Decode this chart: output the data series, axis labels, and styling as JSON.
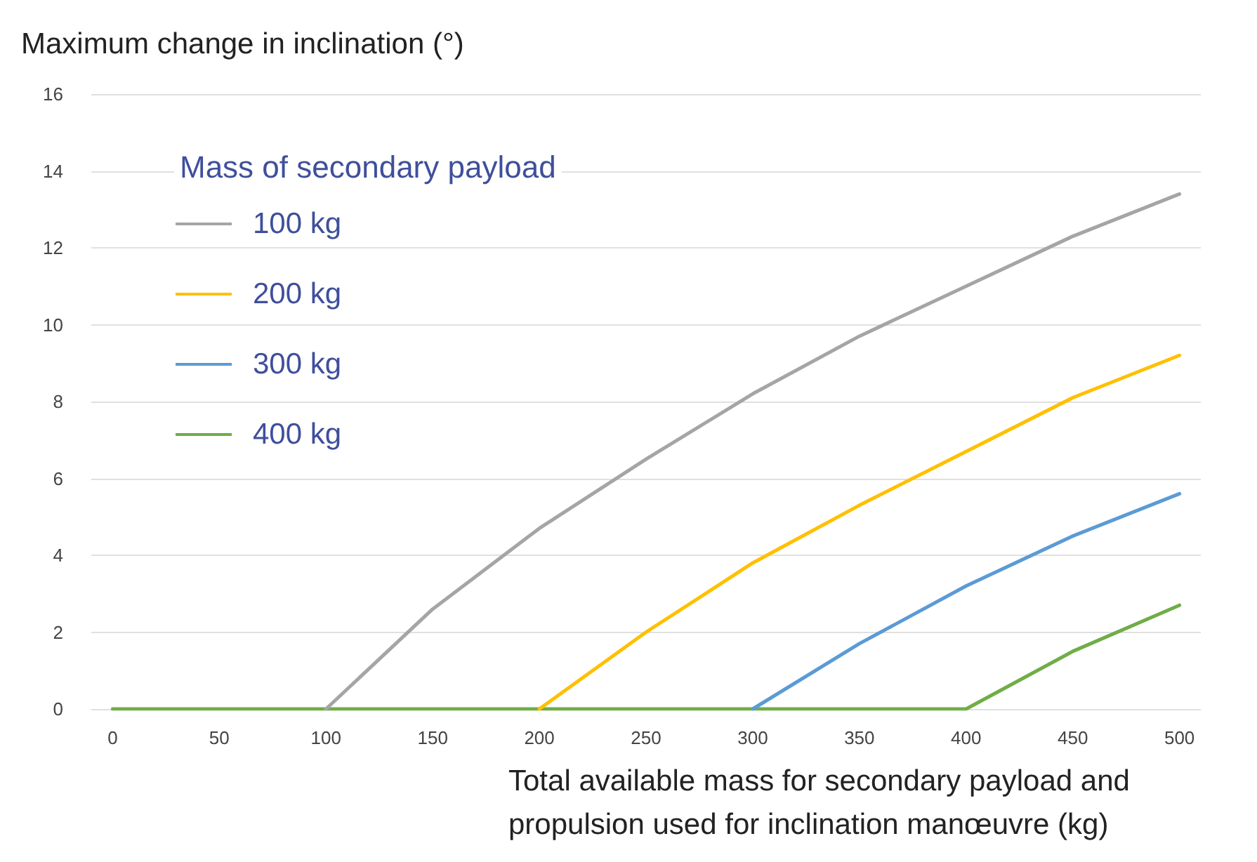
{
  "chart_data": {
    "type": "line",
    "ylabel": "Maximum change in inclination (°)",
    "xlabel": "Total available mass for secondary payload and propulsion used for inclination manœuvre (kg)",
    "legend_title": "Mass of secondary payload",
    "x": [
      0,
      50,
      100,
      150,
      200,
      250,
      300,
      350,
      400,
      450,
      500
    ],
    "series": [
      {
        "name": "100 kg",
        "color": "#a5a5a5",
        "values": [
          null,
          null,
          0,
          2.6,
          4.7,
          6.5,
          8.2,
          9.7,
          11.0,
          12.3,
          13.4
        ]
      },
      {
        "name": "200 kg",
        "color": "#ffc000",
        "values": [
          null,
          null,
          null,
          null,
          0,
          2.0,
          3.8,
          5.3,
          6.7,
          8.1,
          9.2
        ]
      },
      {
        "name": "300 kg",
        "color": "#5b9bd5",
        "values": [
          null,
          null,
          null,
          null,
          null,
          null,
          0,
          1.7,
          3.2,
          4.5,
          5.6
        ]
      },
      {
        "name": "400 kg",
        "color": "#70ad47",
        "values": [
          0,
          0,
          0,
          0,
          0,
          0,
          0,
          0,
          0,
          1.5,
          2.7
        ]
      }
    ],
    "xlim": [
      -10,
      510
    ],
    "xticks": [
      0,
      50,
      100,
      150,
      200,
      250,
      300,
      350,
      400,
      450,
      500
    ],
    "ylim": [
      0,
      16
    ],
    "yticks": [
      0,
      2,
      4,
      6,
      8,
      10,
      12,
      14,
      16
    ],
    "grid": "y",
    "legend": "top left",
    "marker": "none",
    "line_style": "solid"
  }
}
